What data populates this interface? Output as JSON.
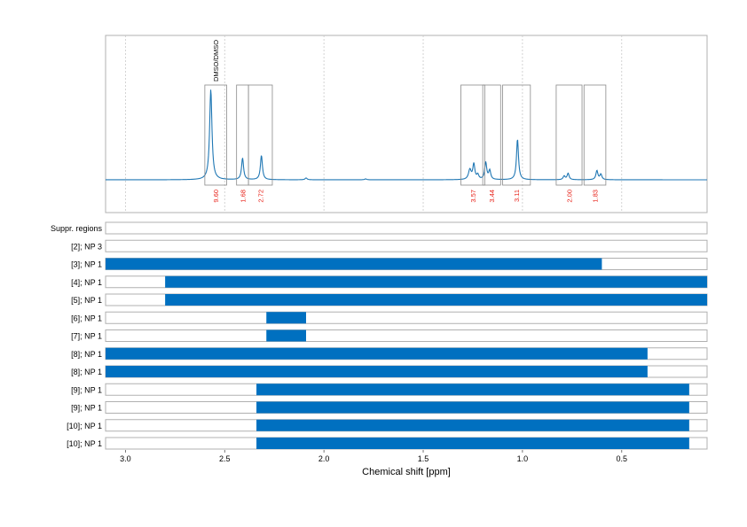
{
  "chart_data": [
    {
      "type": "line",
      "xlim": [
        3.1,
        0.07
      ],
      "x_reversed": true,
      "line_color": "#1f77b4",
      "grid": true,
      "peaks": [
        {
          "center": 2.57,
          "height": 1.0,
          "width": 0.007
        },
        {
          "center": 2.41,
          "height": 0.24,
          "width": 0.006
        },
        {
          "center": 2.315,
          "height": 0.27,
          "width": 0.006
        },
        {
          "center": 2.09,
          "height": 0.02,
          "width": 0.006
        },
        {
          "center": 1.79,
          "height": 0.01,
          "width": 0.006
        },
        {
          "center": 1.265,
          "height": 0.11,
          "width": 0.008
        },
        {
          "center": 1.245,
          "height": 0.17,
          "width": 0.006
        },
        {
          "center": 1.225,
          "height": 0.05,
          "width": 0.006
        },
        {
          "center": 1.185,
          "height": 0.19,
          "width": 0.006
        },
        {
          "center": 1.165,
          "height": 0.1,
          "width": 0.006
        },
        {
          "center": 1.025,
          "height": 0.45,
          "width": 0.006
        },
        {
          "center": 0.79,
          "height": 0.04,
          "width": 0.006
        },
        {
          "center": 0.77,
          "height": 0.07,
          "width": 0.006
        },
        {
          "center": 0.625,
          "height": 0.1,
          "width": 0.006
        },
        {
          "center": 0.605,
          "height": 0.06,
          "width": 0.006
        }
      ],
      "integration_regions": [
        {
          "from": 2.6,
          "to": 2.49,
          "label": "9.60",
          "annotation": "DMSO/DMSO"
        },
        {
          "from": 2.44,
          "to": 2.38,
          "label": "1.68"
        },
        {
          "from": 2.38,
          "to": 2.26,
          "label": "2.72"
        },
        {
          "from": 1.31,
          "to": 1.19,
          "label": "3.57"
        },
        {
          "from": 1.2,
          "to": 1.11,
          "label": "3.44"
        },
        {
          "from": 1.1,
          "to": 0.96,
          "label": "3.11"
        },
        {
          "from": 0.83,
          "to": 0.7,
          "label": "2.00"
        },
        {
          "from": 0.69,
          "to": 0.58,
          "label": "1.83"
        }
      ]
    },
    {
      "type": "bar",
      "orientation": "horizontal",
      "bar_color": "#0070c0",
      "xlabel": "Chemical shift [ppm]",
      "xlim": [
        3.1,
        0.07
      ],
      "x_reversed": true,
      "xticks": [
        3.0,
        2.5,
        2.0,
        1.5,
        1.0,
        0.5
      ],
      "xtick_labels": [
        "3.0",
        "2.5",
        "2.0",
        "1.5",
        "1.0",
        "0.5"
      ],
      "rows": [
        {
          "label": "Suppr. regions",
          "ranges": []
        },
        {
          "label": "[2]; NP 3",
          "ranges": []
        },
        {
          "label": "[3]; NP 1",
          "ranges": [
            [
              3.1,
              0.6
            ]
          ]
        },
        {
          "label": "[4]; NP 1",
          "ranges": [
            [
              2.8,
              0.07
            ]
          ]
        },
        {
          "label": "[5]; NP 1",
          "ranges": [
            [
              2.8,
              0.07
            ]
          ]
        },
        {
          "label": "[6]; NP 1",
          "ranges": [
            [
              2.29,
              2.09
            ]
          ]
        },
        {
          "label": "[7]; NP 1",
          "ranges": [
            [
              2.29,
              2.09
            ]
          ]
        },
        {
          "label": "[8]; NP 1",
          "ranges": [
            [
              3.1,
              0.37
            ]
          ]
        },
        {
          "label": "[8]; NP 1",
          "ranges": [
            [
              3.1,
              0.37
            ]
          ]
        },
        {
          "label": "[9]; NP 1",
          "ranges": [
            [
              2.34,
              0.16
            ]
          ]
        },
        {
          "label": "[9]; NP 1",
          "ranges": [
            [
              2.34,
              0.16
            ]
          ]
        },
        {
          "label": "[10]; NP 1",
          "ranges": [
            [
              2.34,
              0.16
            ]
          ]
        },
        {
          "label": "[10]; NP 1",
          "ranges": [
            [
              2.34,
              0.16
            ]
          ]
        }
      ]
    }
  ]
}
